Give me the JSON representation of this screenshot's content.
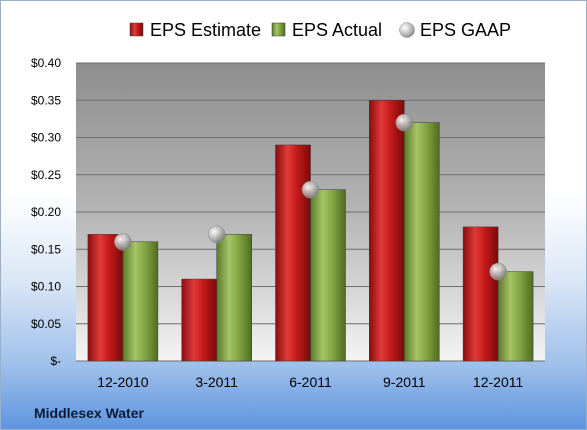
{
  "chart_data": {
    "type": "bar",
    "categories": [
      "12-2010",
      "3-2011",
      "6-2011",
      "9-2011",
      "12-2011"
    ],
    "series": [
      {
        "name": "EPS Estimate",
        "kind": "bar",
        "color": "#cc1f1f",
        "values": [
          0.17,
          0.11,
          0.29,
          0.35,
          0.18
        ]
      },
      {
        "name": "EPS Actual",
        "kind": "bar",
        "color": "#86a845",
        "values": [
          0.16,
          0.17,
          0.23,
          0.32,
          0.12
        ]
      },
      {
        "name": "EPS GAAP",
        "kind": "marker",
        "color": "#b8b8b8",
        "values": [
          0.16,
          0.17,
          0.23,
          0.32,
          0.12
        ]
      }
    ],
    "ylim": [
      0,
      0.4
    ],
    "y_ticks": [
      {
        "value": 0,
        "label": "$-"
      },
      {
        "value": 0.05,
        "label": "$0.05"
      },
      {
        "value": 0.1,
        "label": "$0.10"
      },
      {
        "value": 0.15,
        "label": "$0.15"
      },
      {
        "value": 0.2,
        "label": "$0.20"
      },
      {
        "value": 0.25,
        "label": "$0.25"
      },
      {
        "value": 0.3,
        "label": "$0.30"
      },
      {
        "value": 0.35,
        "label": "$0.35"
      },
      {
        "value": 0.4,
        "label": "$0.40"
      }
    ],
    "grid": true,
    "legend_position": "top"
  },
  "company_name": "Middlesex Water"
}
